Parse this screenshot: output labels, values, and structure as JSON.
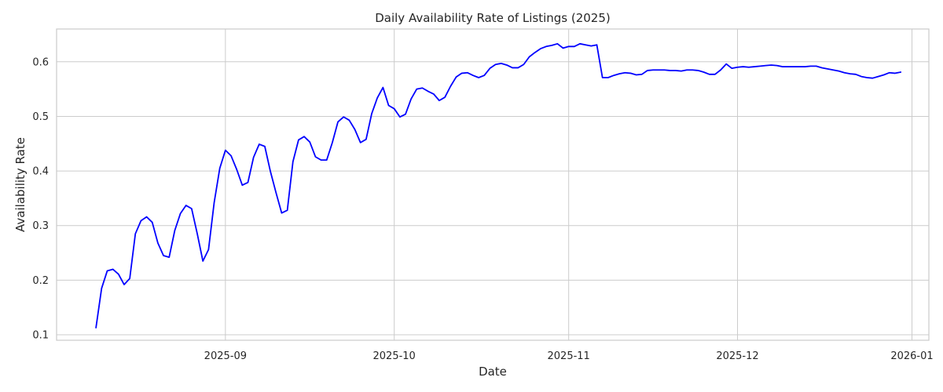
{
  "chart_data": {
    "type": "line",
    "title": "Daily Availability Rate of Listings (2025)",
    "xlabel": "Date",
    "ylabel": "Availability Rate",
    "x_tick_labels": [
      "2025-09",
      "2025-10",
      "2025-11",
      "2025-12",
      "2026-01"
    ],
    "x_tick_dates": [
      "2025-09-01",
      "2025-10-01",
      "2025-11-01",
      "2025-12-01",
      "2026-01-01"
    ],
    "y_tick_labels": [
      "0.1",
      "0.2",
      "0.3",
      "0.4",
      "0.5",
      "0.6"
    ],
    "y_tick_values": [
      0.1,
      0.2,
      0.3,
      0.4,
      0.5,
      0.6
    ],
    "xlim": [
      "2025-08-02",
      "2026-01-04"
    ],
    "ylim": [
      0.09,
      0.66
    ],
    "grid": true,
    "line_color": "#0000ff",
    "series": [
      {
        "points": [
          [
            "2025-08-09",
            0.113
          ],
          [
            "2025-08-10",
            0.185
          ],
          [
            "2025-08-11",
            0.217
          ],
          [
            "2025-08-12",
            0.22
          ],
          [
            "2025-08-13",
            0.211
          ],
          [
            "2025-08-14",
            0.192
          ],
          [
            "2025-08-15",
            0.203
          ],
          [
            "2025-08-16",
            0.285
          ],
          [
            "2025-08-17",
            0.309
          ],
          [
            "2025-08-18",
            0.316
          ],
          [
            "2025-08-19",
            0.306
          ],
          [
            "2025-08-20",
            0.268
          ],
          [
            "2025-08-21",
            0.245
          ],
          [
            "2025-08-22",
            0.242
          ],
          [
            "2025-08-23",
            0.291
          ],
          [
            "2025-08-24",
            0.322
          ],
          [
            "2025-08-25",
            0.337
          ],
          [
            "2025-08-26",
            0.331
          ],
          [
            "2025-08-27",
            0.285
          ],
          [
            "2025-08-28",
            0.235
          ],
          [
            "2025-08-29",
            0.256
          ],
          [
            "2025-08-30",
            0.342
          ],
          [
            "2025-08-31",
            0.405
          ],
          [
            "2025-09-01",
            0.438
          ],
          [
            "2025-09-02",
            0.428
          ],
          [
            "2025-09-03",
            0.403
          ],
          [
            "2025-09-04",
            0.374
          ],
          [
            "2025-09-05",
            0.379
          ],
          [
            "2025-09-06",
            0.425
          ],
          [
            "2025-09-07",
            0.449
          ],
          [
            "2025-09-08",
            0.445
          ],
          [
            "2025-09-09",
            0.399
          ],
          [
            "2025-09-10",
            0.36
          ],
          [
            "2025-09-11",
            0.323
          ],
          [
            "2025-09-12",
            0.328
          ],
          [
            "2025-09-13",
            0.417
          ],
          [
            "2025-09-14",
            0.457
          ],
          [
            "2025-09-15",
            0.463
          ],
          [
            "2025-09-16",
            0.453
          ],
          [
            "2025-09-17",
            0.426
          ],
          [
            "2025-09-18",
            0.42
          ],
          [
            "2025-09-19",
            0.42
          ],
          [
            "2025-09-20",
            0.452
          ],
          [
            "2025-09-21",
            0.49
          ],
          [
            "2025-09-22",
            0.499
          ],
          [
            "2025-09-23",
            0.493
          ],
          [
            "2025-09-24",
            0.476
          ],
          [
            "2025-09-25",
            0.452
          ],
          [
            "2025-09-26",
            0.458
          ],
          [
            "2025-09-27",
            0.505
          ],
          [
            "2025-09-28",
            0.534
          ],
          [
            "2025-09-29",
            0.553
          ],
          [
            "2025-09-30",
            0.52
          ],
          [
            "2025-10-01",
            0.514
          ],
          [
            "2025-10-02",
            0.499
          ],
          [
            "2025-10-03",
            0.504
          ],
          [
            "2025-10-04",
            0.532
          ],
          [
            "2025-10-05",
            0.55
          ],
          [
            "2025-10-06",
            0.552
          ],
          [
            "2025-10-07",
            0.546
          ],
          [
            "2025-10-08",
            0.541
          ],
          [
            "2025-10-09",
            0.529
          ],
          [
            "2025-10-10",
            0.535
          ],
          [
            "2025-10-11",
            0.555
          ],
          [
            "2025-10-12",
            0.572
          ],
          [
            "2025-10-13",
            0.579
          ],
          [
            "2025-10-14",
            0.58
          ],
          [
            "2025-10-15",
            0.575
          ],
          [
            "2025-10-16",
            0.571
          ],
          [
            "2025-10-17",
            0.575
          ],
          [
            "2025-10-18",
            0.588
          ],
          [
            "2025-10-19",
            0.595
          ],
          [
            "2025-10-20",
            0.597
          ],
          [
            "2025-10-21",
            0.594
          ],
          [
            "2025-10-22",
            0.589
          ],
          [
            "2025-10-23",
            0.589
          ],
          [
            "2025-10-24",
            0.595
          ],
          [
            "2025-10-25",
            0.609
          ],
          [
            "2025-10-26",
            0.617
          ],
          [
            "2025-10-27",
            0.624
          ],
          [
            "2025-10-28",
            0.628
          ],
          [
            "2025-10-29",
            0.63
          ],
          [
            "2025-10-30",
            0.633
          ],
          [
            "2025-10-31",
            0.625
          ],
          [
            "2025-11-01",
            0.628
          ],
          [
            "2025-11-02",
            0.628
          ],
          [
            "2025-11-03",
            0.633
          ],
          [
            "2025-11-04",
            0.631
          ],
          [
            "2025-11-05",
            0.629
          ],
          [
            "2025-11-06",
            0.631
          ],
          [
            "2025-11-07",
            0.571
          ],
          [
            "2025-11-08",
            0.571
          ],
          [
            "2025-11-09",
            0.575
          ],
          [
            "2025-11-10",
            0.578
          ],
          [
            "2025-11-11",
            0.58
          ],
          [
            "2025-11-12",
            0.579
          ],
          [
            "2025-11-13",
            0.576
          ],
          [
            "2025-11-14",
            0.577
          ],
          [
            "2025-11-15",
            0.584
          ],
          [
            "2025-11-16",
            0.585
          ],
          [
            "2025-11-17",
            0.585
          ],
          [
            "2025-11-18",
            0.585
          ],
          [
            "2025-11-19",
            0.584
          ],
          [
            "2025-11-20",
            0.584
          ],
          [
            "2025-11-21",
            0.583
          ],
          [
            "2025-11-22",
            0.585
          ],
          [
            "2025-11-23",
            0.585
          ],
          [
            "2025-11-24",
            0.584
          ],
          [
            "2025-11-25",
            0.581
          ],
          [
            "2025-11-26",
            0.577
          ],
          [
            "2025-11-27",
            0.577
          ],
          [
            "2025-11-28",
            0.585
          ],
          [
            "2025-11-29",
            0.596
          ],
          [
            "2025-11-30",
            0.588
          ],
          [
            "2025-12-01",
            0.59
          ],
          [
            "2025-12-02",
            0.591
          ],
          [
            "2025-12-03",
            0.59
          ],
          [
            "2025-12-04",
            0.591
          ],
          [
            "2025-12-05",
            0.592
          ],
          [
            "2025-12-06",
            0.593
          ],
          [
            "2025-12-07",
            0.594
          ],
          [
            "2025-12-08",
            0.593
          ],
          [
            "2025-12-09",
            0.591
          ],
          [
            "2025-12-10",
            0.591
          ],
          [
            "2025-12-11",
            0.591
          ],
          [
            "2025-12-12",
            0.591
          ],
          [
            "2025-12-13",
            0.591
          ],
          [
            "2025-12-14",
            0.592
          ],
          [
            "2025-12-15",
            0.592
          ],
          [
            "2025-12-16",
            0.589
          ],
          [
            "2025-12-17",
            0.587
          ],
          [
            "2025-12-18",
            0.585
          ],
          [
            "2025-12-19",
            0.583
          ],
          [
            "2025-12-20",
            0.58
          ],
          [
            "2025-12-21",
            0.578
          ],
          [
            "2025-12-22",
            0.577
          ],
          [
            "2025-12-23",
            0.573
          ],
          [
            "2025-12-24",
            0.571
          ],
          [
            "2025-12-25",
            0.57
          ],
          [
            "2025-12-26",
            0.573
          ],
          [
            "2025-12-27",
            0.576
          ],
          [
            "2025-12-28",
            0.58
          ],
          [
            "2025-12-29",
            0.579
          ],
          [
            "2025-12-30",
            0.581
          ]
        ]
      }
    ]
  }
}
